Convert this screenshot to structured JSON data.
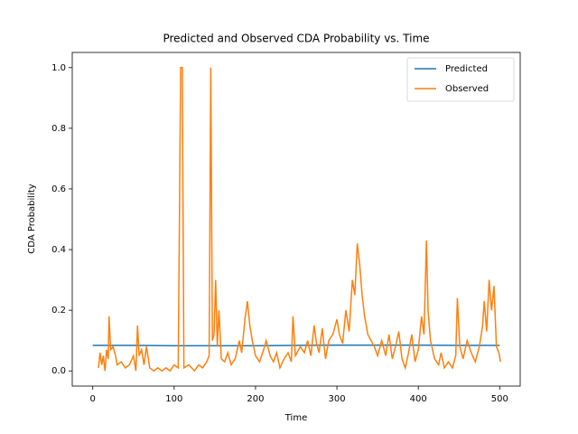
{
  "chart_data": {
    "type": "line",
    "title": "Predicted and Observed CDA Probability vs. Time",
    "xlabel": "Time",
    "ylabel": "CDA Probability",
    "xlim": [
      -25.2,
      525.2
    ],
    "ylim": [
      -0.05,
      1.05
    ],
    "xticks": [
      0,
      100,
      200,
      300,
      400,
      500
    ],
    "yticks": [
      {
        "value": 0,
        "label": "0.0"
      },
      0.2,
      0.4,
      0.6,
      0.8,
      {
        "value": 1,
        "label": "1.0"
      }
    ],
    "legend": "upper right",
    "grid": false,
    "series": [
      {
        "name": "Predicted",
        "color": "#1f77b4",
        "x": [
          0,
          50,
          100,
          150,
          200,
          250,
          300,
          350,
          400,
          450,
          500
        ],
        "values": [
          0.084,
          0.084,
          0.083,
          0.083,
          0.083,
          0.084,
          0.085,
          0.085,
          0.085,
          0.084,
          0.084
        ]
      },
      {
        "name": "Observed",
        "color": "#ff7f0e",
        "x": [
          7,
          9,
          11,
          13,
          15,
          17,
          19,
          20,
          22,
          25,
          28,
          30,
          35,
          40,
          45,
          50,
          53,
          55,
          57,
          60,
          63,
          66,
          70,
          75,
          80,
          85,
          90,
          95,
          100,
          105,
          108,
          110,
          112,
          118,
          125,
          130,
          135,
          140,
          143,
          145,
          147,
          149,
          151,
          153,
          155,
          158,
          162,
          166,
          170,
          175,
          180,
          183,
          187,
          190,
          193,
          196,
          200,
          205,
          210,
          213,
          218,
          222,
          226,
          230,
          235,
          240,
          244,
          246,
          249,
          255,
          260,
          264,
          268,
          272,
          275,
          278,
          282,
          286,
          290,
          295,
          300,
          303,
          307,
          311,
          315,
          319,
          322,
          325,
          328,
          331,
          334,
          338,
          342,
          346,
          350,
          355,
          360,
          364,
          368,
          372,
          376,
          380,
          384,
          388,
          392,
          396,
          400,
          404,
          407,
          410,
          412,
          415,
          420,
          425,
          428,
          432,
          437,
          442,
          446,
          448,
          451,
          455,
          460,
          465,
          470,
          475,
          479,
          481,
          484,
          487,
          490,
          493,
          496,
          499,
          501
        ],
        "values": [
          0.01,
          0.06,
          0.02,
          0.05,
          0.0,
          0.07,
          0.04,
          0.18,
          0.07,
          0.08,
          0.05,
          0.02,
          0.03,
          0.01,
          0.02,
          0.05,
          0.0,
          0.15,
          0.05,
          0.07,
          0.02,
          0.08,
          0.01,
          0.0,
          0.01,
          0.0,
          0.01,
          0.0,
          0.02,
          0.01,
          1.0,
          1.0,
          0.01,
          0.02,
          0.0,
          0.02,
          0.01,
          0.03,
          0.05,
          1.0,
          0.1,
          0.12,
          0.3,
          0.08,
          0.2,
          0.04,
          0.03,
          0.06,
          0.02,
          0.04,
          0.1,
          0.06,
          0.17,
          0.23,
          0.15,
          0.1,
          0.05,
          0.03,
          0.07,
          0.1,
          0.05,
          0.03,
          0.06,
          0.01,
          0.04,
          0.06,
          0.03,
          0.18,
          0.05,
          0.08,
          0.06,
          0.1,
          0.05,
          0.15,
          0.09,
          0.06,
          0.14,
          0.04,
          0.1,
          0.12,
          0.17,
          0.12,
          0.09,
          0.2,
          0.13,
          0.3,
          0.25,
          0.42,
          0.35,
          0.25,
          0.18,
          0.12,
          0.1,
          0.08,
          0.05,
          0.1,
          0.05,
          0.12,
          0.04,
          0.08,
          0.13,
          0.04,
          0.01,
          0.06,
          0.12,
          0.03,
          0.07,
          0.18,
          0.12,
          0.43,
          0.2,
          0.1,
          0.04,
          0.02,
          0.06,
          0.01,
          0.03,
          0.01,
          0.05,
          0.24,
          0.08,
          0.04,
          0.1,
          0.06,
          0.03,
          0.08,
          0.15,
          0.23,
          0.13,
          0.3,
          0.2,
          0.28,
          0.08,
          0.06,
          0.03
        ]
      }
    ]
  }
}
